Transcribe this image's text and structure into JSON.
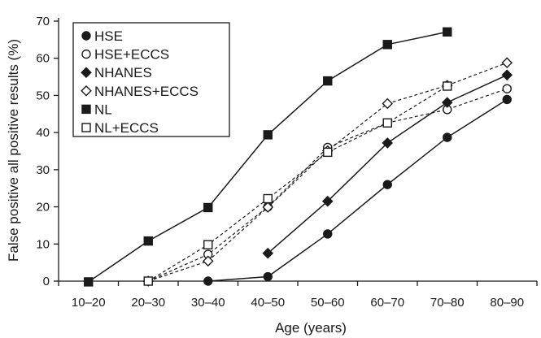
{
  "chart_data": {
    "type": "line",
    "xlabel": "Age (years)",
    "ylabel": "False positive all positive results (%)",
    "categories": [
      "10–20",
      "20–30",
      "30–40",
      "40–50",
      "50–60",
      "60–70",
      "70–80",
      "80–90"
    ],
    "ylim": [
      0,
      70
    ],
    "yticks": [
      0,
      10,
      20,
      30,
      40,
      50,
      60,
      70
    ],
    "grid": false,
    "legend_position": "top-left",
    "series": [
      {
        "name": "HSE",
        "marker": "filled-circle",
        "line": "solid",
        "values": [
          null,
          null,
          0,
          1.2,
          12.7,
          26,
          38.7,
          48.9
        ]
      },
      {
        "name": "HSE+ECCS",
        "marker": "open-circle",
        "line": "dashed",
        "values": [
          null,
          0,
          7.2,
          20,
          36,
          42.6,
          46.2,
          51.8
        ]
      },
      {
        "name": "NHANES",
        "marker": "filled-diamond",
        "line": "solid",
        "values": [
          null,
          null,
          null,
          7.5,
          21.5,
          37.2,
          48.1,
          55.5
        ]
      },
      {
        "name": "NHANES+ECCS",
        "marker": "open-diamond",
        "line": "dashed",
        "values": [
          null,
          0,
          5.4,
          19.9,
          35.1,
          47.8,
          52.7,
          58.8
        ]
      },
      {
        "name": "NL",
        "marker": "filled-square",
        "line": "solid",
        "values": [
          -0.2,
          10.8,
          19.8,
          39.4,
          53.9,
          63.7,
          67.1,
          null
        ]
      },
      {
        "name": "NL+ECCS",
        "marker": "open-square",
        "line": "dashed",
        "values": [
          null,
          0,
          9.8,
          22.2,
          34.7,
          42.6,
          52.5,
          null
        ]
      }
    ]
  }
}
